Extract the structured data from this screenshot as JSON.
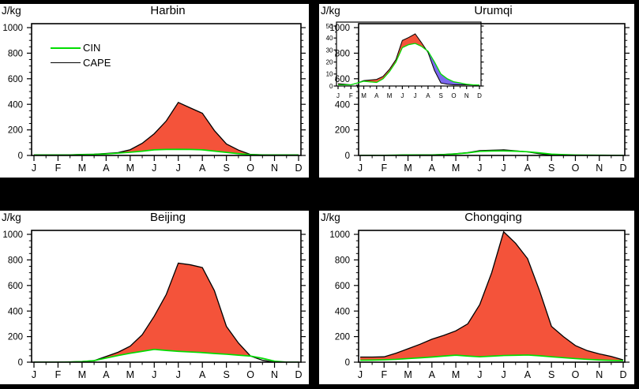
{
  "page_bg": "#000000",
  "panel_bg": "#ffffff",
  "colors": {
    "cape_line": "#000000",
    "cin_line": "#00DD00",
    "fill_positive": "#F4533A",
    "fill_negative": "#7B68EE",
    "axis": "#000000"
  },
  "legend": {
    "items": [
      {
        "label": "CIN",
        "color_key": "cin_line"
      },
      {
        "label": "CAPE",
        "color_key": "cape_line"
      }
    ]
  },
  "chart_data": [
    {
      "id": "harbin",
      "type": "area",
      "title": "Harbin",
      "ylabel": "J/kg",
      "ylim": [
        0,
        1000
      ],
      "yticks": [
        0,
        200,
        400,
        600,
        800,
        1000
      ],
      "y_minor_step": 50,
      "categories": [
        "J",
        "F",
        "M",
        "A",
        "M",
        "J",
        "J",
        "A",
        "S",
        "O",
        "N",
        "D"
      ],
      "x_step_months": 0.5,
      "series": [
        {
          "name": "CIN",
          "values": [
            3,
            3,
            3,
            3,
            6,
            8,
            12,
            18,
            25,
            33,
            44,
            47,
            48,
            47,
            44,
            34,
            24,
            14,
            6,
            3,
            3,
            3,
            3
          ]
        },
        {
          "name": "CAPE",
          "values": [
            5,
            5,
            5,
            5,
            8,
            10,
            15,
            22,
            45,
            95,
            170,
            270,
            415,
            372,
            330,
            195,
            90,
            42,
            8,
            5,
            5,
            5,
            5
          ]
        }
      ],
      "fill_positive": "#F4533A",
      "fill_negative": null
    },
    {
      "id": "urumqi",
      "type": "area",
      "title": "Urumqi",
      "ylabel": "J/kg",
      "ylim": [
        0,
        1000
      ],
      "yticks": [
        0,
        200,
        400,
        600,
        800,
        1000
      ],
      "y_minor_step": 50,
      "categories": [
        "J",
        "F",
        "M",
        "A",
        "M",
        "J",
        "J",
        "A",
        "S",
        "O",
        "N",
        "D"
      ],
      "x_step_months": 0.5,
      "series": [
        {
          "name": "CIN",
          "values": [
            1,
            1,
            1,
            2.5,
            4,
            3.5,
            3,
            6,
            12,
            20,
            32,
            34.5,
            35.5,
            33,
            29,
            20,
            10,
            6,
            3.5,
            2.5,
            1.5,
            1,
            0.8
          ]
        },
        {
          "name": "CAPE",
          "values": [
            2,
            1.5,
            1,
            2.5,
            4.5,
            5,
            5.5,
            8,
            14,
            22,
            38,
            40.5,
            43.5,
            36,
            28,
            13,
            2.5,
            1.5,
            1,
            1,
            1,
            0.8,
            0.5
          ]
        }
      ],
      "fill_positive": "#F4533A",
      "fill_negative": "#7B68EE"
    },
    {
      "id": "beijing",
      "type": "area",
      "title": "Beijing",
      "ylabel": "J/kg",
      "ylim": [
        0,
        1000
      ],
      "yticks": [
        0,
        200,
        400,
        600,
        800,
        1000
      ],
      "y_minor_step": 50,
      "categories": [
        "J",
        "F",
        "M",
        "A",
        "M",
        "J",
        "J",
        "A",
        "S",
        "O",
        "N",
        "D"
      ],
      "x_step_months": 0.5,
      "series": [
        {
          "name": "CIN",
          "values": [
            0,
            0,
            0,
            2,
            5,
            12,
            32,
            52,
            70,
            85,
            100,
            92,
            85,
            80,
            75,
            68,
            62,
            55,
            48,
            30,
            8,
            0,
            0
          ]
        },
        {
          "name": "CAPE",
          "values": [
            0,
            0,
            0,
            2,
            5,
            12,
            45,
            78,
            125,
            215,
            360,
            530,
            775,
            762,
            740,
            560,
            280,
            150,
            48,
            15,
            0,
            0,
            0
          ]
        }
      ],
      "fill_positive": "#F4533A",
      "fill_negative": null
    },
    {
      "id": "chongqing",
      "type": "area",
      "title": "Chongqing",
      "ylabel": "J/kg",
      "ylim": [
        0,
        1000
      ],
      "yticks": [
        0,
        200,
        400,
        600,
        800,
        1000
      ],
      "y_minor_step": 50,
      "categories": [
        "J",
        "F",
        "M",
        "A",
        "M",
        "J",
        "J",
        "A",
        "S",
        "O",
        "N",
        "D"
      ],
      "x_step_months": 0.5,
      "series": [
        {
          "name": "CIN",
          "values": [
            15,
            16,
            18,
            22,
            28,
            34,
            40,
            48,
            55,
            48,
            42,
            47,
            52,
            54,
            56,
            50,
            42,
            35,
            28,
            22,
            17,
            14,
            12
          ]
        },
        {
          "name": "CAPE",
          "values": [
            40,
            40,
            42,
            70,
            105,
            140,
            180,
            210,
            245,
            300,
            450,
            700,
            1020,
            930,
            810,
            560,
            280,
            200,
            130,
            90,
            65,
            45,
            18
          ]
        }
      ],
      "fill_positive": "#F4533A",
      "fill_negative": null
    },
    {
      "id": "urumqi_inset",
      "type": "area",
      "title": "",
      "ylabel": "",
      "ylim": [
        0,
        50
      ],
      "yticks": [
        0,
        10,
        20,
        30,
        40,
        50
      ],
      "y_minor_step": 5,
      "categories": [
        "J",
        "F",
        "M",
        "A",
        "M",
        "J",
        "J",
        "A",
        "S",
        "O",
        "N",
        "D"
      ],
      "x_step_months": 0.5,
      "series": [
        {
          "name": "CIN",
          "values": [
            1,
            1,
            1,
            2.5,
            4,
            3.5,
            3,
            6,
            12,
            20,
            32,
            34.5,
            35.5,
            33,
            29,
            20,
            10,
            6,
            3.5,
            2.5,
            1.5,
            1,
            0.8
          ]
        },
        {
          "name": "CAPE",
          "values": [
            2,
            1.5,
            1,
            2.5,
            4.5,
            5,
            5.5,
            8,
            14,
            22,
            38,
            40.5,
            43.5,
            36,
            28,
            13,
            2.5,
            1.5,
            1,
            1,
            1,
            0.8,
            0.5
          ]
        }
      ],
      "fill_positive": "#F4533A",
      "fill_negative": "#7B68EE"
    }
  ]
}
